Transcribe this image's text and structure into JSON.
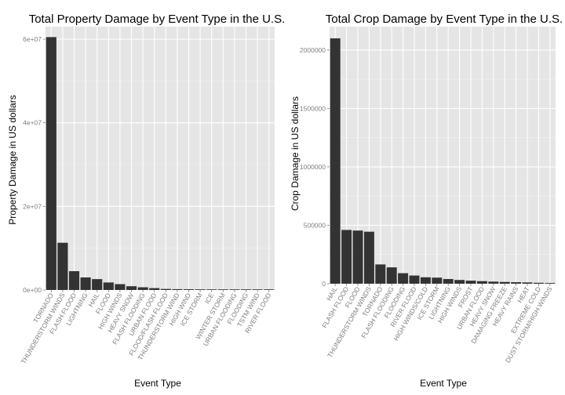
{
  "chart_data": [
    {
      "type": "bar",
      "title": "Total Property Damage by Event Type in the U.S.",
      "xlabel": "Event Type",
      "ylabel": "Property Damage in US dollars",
      "ylim": [
        0,
        63000000
      ],
      "yticks": [
        {
          "value": 0,
          "label": "0e+00"
        },
        {
          "value": 20000000,
          "label": "2e+07"
        },
        {
          "value": 40000000,
          "label": "4e+07"
        },
        {
          "value": 60000000,
          "label": "6e+07"
        }
      ],
      "grid": true,
      "bar_color": "#333333",
      "panel_color": "#e5e5e5",
      "categories": [
        "TORNADO",
        "THUNDERSTORM WINDS",
        "FLASH FLOOD",
        "LIGHTNING",
        "HAIL",
        "FLOOD",
        "HIGH WINDS",
        "HEAVY SNOW",
        "FLASH FLOODING",
        "URBAN FLOOD",
        "FLOOD/FLASH FLOOD",
        "THUNDERSTORM WIND",
        "HIGH WIND",
        "ICE STORM",
        "ICE",
        "WINTER STORM",
        "URBAN FLOODING",
        "FLOODING",
        "TSTM WIND",
        "RIVER FLOOD"
      ],
      "values": [
        60500000,
        11300000,
        4500000,
        3000000,
        2600000,
        1800000,
        1400000,
        900000,
        650000,
        450000,
        250000,
        200000,
        180000,
        160000,
        140000,
        120000,
        100000,
        80000,
        20000,
        10000
      ]
    },
    {
      "type": "bar",
      "title": "Total Crop Damage by Event Type in the U.S.",
      "xlabel": "Event Type",
      "ylabel": "Crop Damage in US dollars",
      "ylim": [
        0,
        2200000
      ],
      "yticks": [
        {
          "value": 0,
          "label": "0"
        },
        {
          "value": 500000,
          "label": "500000"
        },
        {
          "value": 1000000,
          "label": "1000000"
        },
        {
          "value": 1500000,
          "label": "1500000"
        },
        {
          "value": 2000000,
          "label": "2000000"
        }
      ],
      "grid": true,
      "bar_color": "#333333",
      "panel_color": "#e5e5e5",
      "categories": [
        "HAIL",
        "FLASH FLOOD",
        "FLOOD",
        "THUNDERSTORM WINDS",
        "TORNADO",
        "FLASH FLOODING",
        "FLOODING",
        "RIVER FLOOD",
        "HIGH WINDS/COLD",
        "ICE STORM",
        "LIGHTNING",
        "HIGH WINDS",
        "FROST",
        "URBAN FLOOD",
        "HEAVY SNOW",
        "DAMAGING FREEZE",
        "HEAVY RAINS",
        "HEAT",
        "EXTREME COLD",
        "DUST STORM/HIGH WINDS"
      ],
      "values": [
        2100000,
        460000,
        455000,
        445000,
        165000,
        140000,
        90000,
        70000,
        55000,
        52000,
        40000,
        32000,
        26000,
        22000,
        18000,
        15000,
        13000,
        11000,
        8000,
        6000
      ]
    }
  ]
}
